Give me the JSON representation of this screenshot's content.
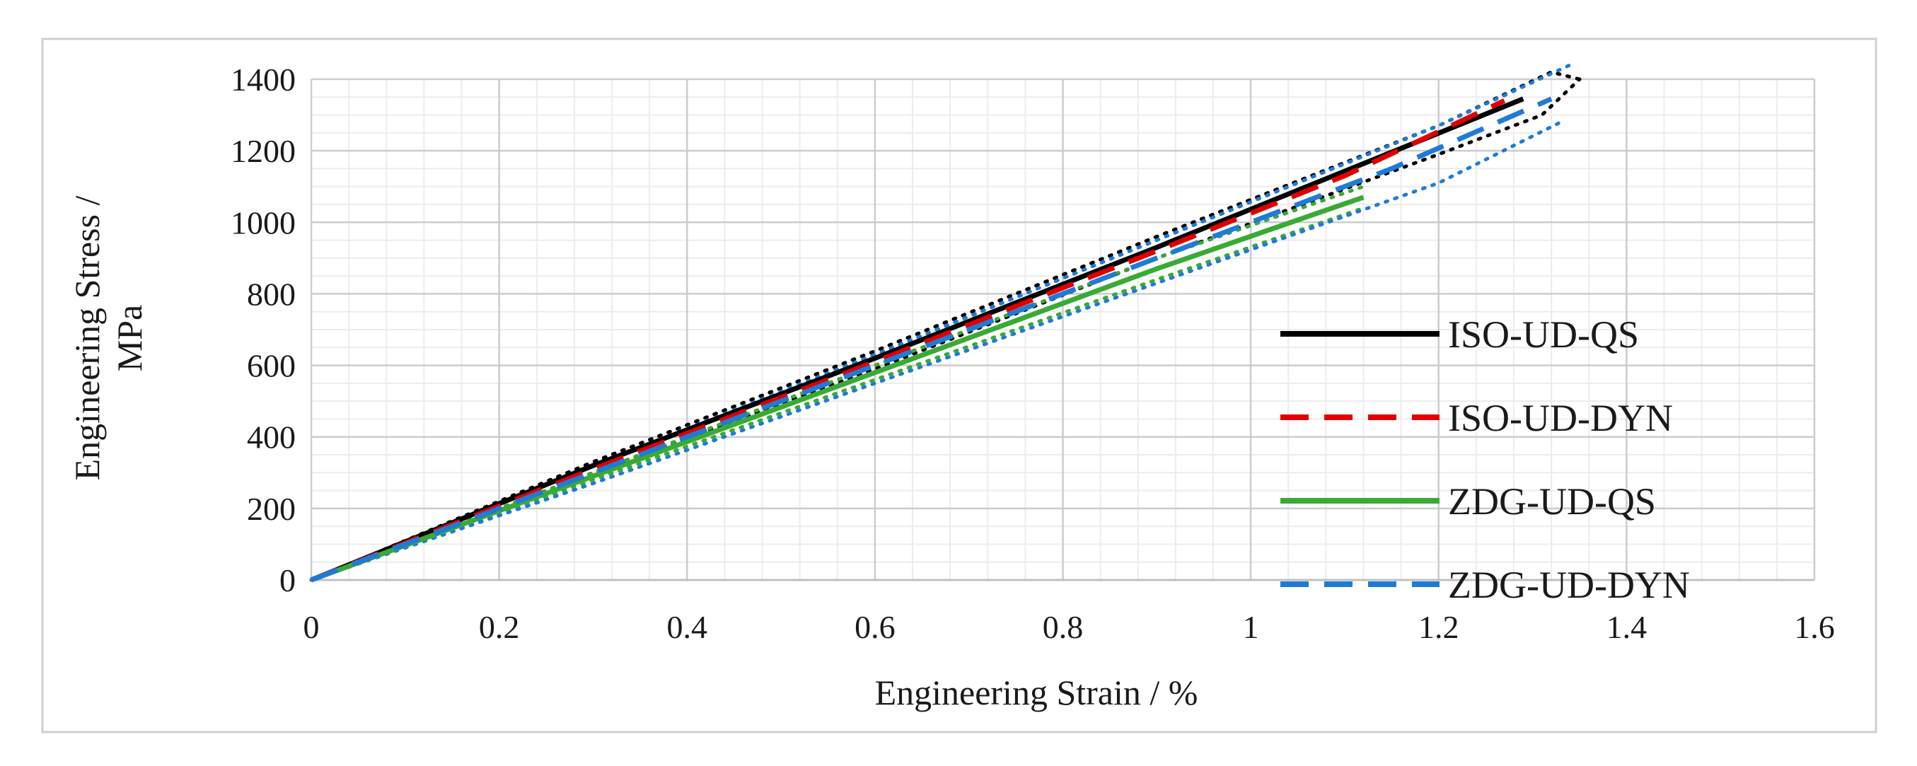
{
  "chart_data": {
    "type": "line",
    "xlabel": "Engineering Strain / %",
    "ylabel_line1": "Engineering Stress /",
    "ylabel_line2": "MPa",
    "xlim": [
      0,
      1.6
    ],
    "ylim": [
      0,
      1400
    ],
    "x_ticks": [
      0,
      0.2,
      0.4,
      0.6,
      0.8,
      1,
      1.2,
      1.4,
      1.6
    ],
    "x_tick_labels": [
      "0",
      "0.2",
      "0.4",
      "0.6",
      "0.8",
      "1",
      "1.2",
      "1.4",
      "1.6"
    ],
    "y_ticks": [
      0,
      200,
      400,
      600,
      800,
      1000,
      1200,
      1400
    ],
    "y_tick_labels": [
      "0",
      "200",
      "400",
      "600",
      "800",
      "1000",
      "1200",
      "1400"
    ],
    "grid": true,
    "legend_position": "right",
    "series": [
      {
        "name": "ISO-UD-QS",
        "color": "#000000",
        "style": "solid",
        "points": [
          [
            0,
            0
          ],
          [
            0.3,
            320
          ],
          [
            0.6,
            620
          ],
          [
            0.9,
            930
          ],
          [
            1.29,
            1345
          ]
        ],
        "envelope": {
          "color": "#000000",
          "upper": [
            [
              0,
              0
            ],
            [
              0.3,
              330
            ],
            [
              0.6,
              640
            ],
            [
              0.9,
              960
            ],
            [
              1.2,
              1270
            ],
            [
              1.32,
              1420
            ],
            [
              1.35,
              1400
            ]
          ],
          "lower": [
            [
              0,
              0
            ],
            [
              0.3,
              300
            ],
            [
              0.6,
              590
            ],
            [
              0.9,
              900
            ],
            [
              1.2,
              1190
            ],
            [
              1.31,
              1300
            ],
            [
              1.35,
              1400
            ]
          ]
        }
      },
      {
        "name": "ISO-UD-DYN",
        "color": "#e00000",
        "style": "dashed",
        "points": [
          [
            0,
            0
          ],
          [
            0.3,
            310
          ],
          [
            0.6,
            610
          ],
          [
            0.9,
            920
          ],
          [
            1.1,
            1130
          ],
          [
            1.27,
            1340
          ]
        ]
      },
      {
        "name": "ZDG-UD-QS",
        "color": "#3aaa35",
        "style": "solid",
        "points": [
          [
            0,
            0
          ],
          [
            0.3,
            290
          ],
          [
            0.6,
            580
          ],
          [
            0.9,
            870
          ],
          [
            1.12,
            1070
          ]
        ],
        "envelope": {
          "color": "#3aaa35",
          "upper": [
            [
              0,
              0
            ],
            [
              0.3,
              300
            ],
            [
              0.6,
              600
            ],
            [
              0.9,
              900
            ],
            [
              1.12,
              1100
            ]
          ],
          "lower": [
            [
              0,
              0
            ],
            [
              0.3,
              280
            ],
            [
              0.6,
              560
            ],
            [
              0.9,
              840
            ],
            [
              1.12,
              1040
            ]
          ]
        }
      },
      {
        "name": "ZDG-UD-DYN",
        "color": "#1f7bd6",
        "style": "dashed",
        "points": [
          [
            0,
            0
          ],
          [
            0.3,
            300
          ],
          [
            0.6,
            600
          ],
          [
            0.9,
            900
          ],
          [
            1.15,
            1150
          ],
          [
            1.32,
            1345
          ]
        ],
        "envelope": {
          "color": "#1f7bd6",
          "upper": [
            [
              0,
              0
            ],
            [
              0.3,
              320
            ],
            [
              0.6,
              630
            ],
            [
              0.9,
              950
            ],
            [
              1.2,
              1270
            ],
            [
              1.34,
              1440
            ]
          ],
          "lower": [
            [
              0,
              0
            ],
            [
              0.3,
              270
            ],
            [
              0.6,
              550
            ],
            [
              0.9,
              830
            ],
            [
              1.2,
              1110
            ],
            [
              1.33,
              1280
            ]
          ]
        }
      }
    ]
  }
}
